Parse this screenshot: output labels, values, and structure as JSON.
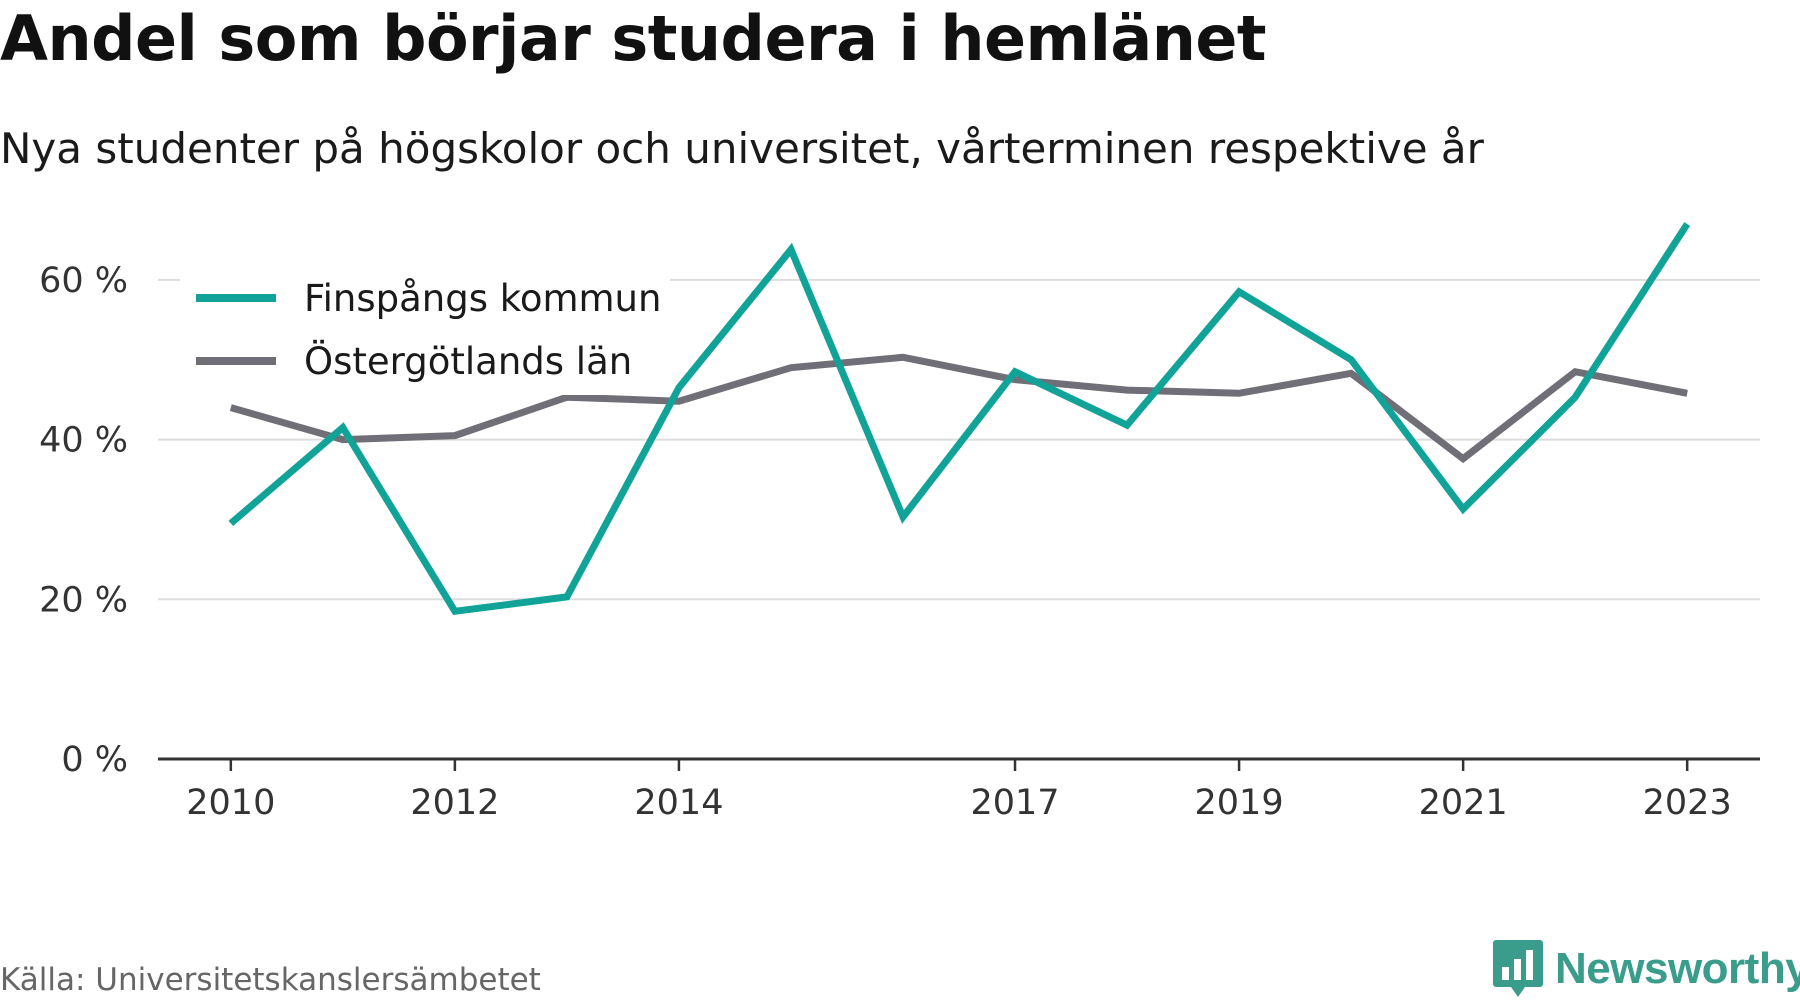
{
  "title": "Andel som börjar studera i hemlänet",
  "subtitle": "Nya studenter på högskolor och universitet, vårterminen respektive år",
  "source": "Källa: Universitetskanslersämbetet",
  "logo_text": "Newsworthy",
  "colors": {
    "finspang": "#12a398",
    "ostergotland": "#706f78",
    "grid": "#dddddd",
    "axis": "#333333",
    "logo": "#3a9d8c"
  },
  "chart_data": {
    "type": "line",
    "x": [
      2010,
      2011,
      2012,
      2013,
      2014,
      2015,
      2016,
      2017,
      2018,
      2019,
      2020,
      2021,
      2022,
      2023
    ],
    "x_tick_values": [
      2010,
      2012,
      2014,
      2017,
      2019,
      2021,
      2023
    ],
    "x_tick_labels": [
      "2010",
      "2012",
      "2014",
      "2017",
      "2019",
      "2021",
      "2023"
    ],
    "y_tick_values": [
      0,
      20,
      40,
      60
    ],
    "y_tick_labels": [
      "0 %",
      "20 %",
      "40 %",
      "60 %"
    ],
    "ylim": [
      0,
      70
    ],
    "xlim": [
      2009.35,
      2023.65
    ],
    "grid": true,
    "legend_position": "top-left",
    "series": [
      {
        "name": "Finspångs kommun",
        "values": [
          29.5,
          41.5,
          18.5,
          20.3,
          46.5,
          63.8,
          30.3,
          48.5,
          41.8,
          58.5,
          50.0,
          31.3,
          45.3,
          67.0
        ]
      },
      {
        "name": "Östergötlands län",
        "values": [
          44.0,
          40.0,
          40.5,
          45.3,
          44.8,
          49.0,
          50.3,
          47.5,
          46.2,
          45.8,
          48.3,
          37.6,
          48.5,
          45.8
        ]
      }
    ]
  }
}
